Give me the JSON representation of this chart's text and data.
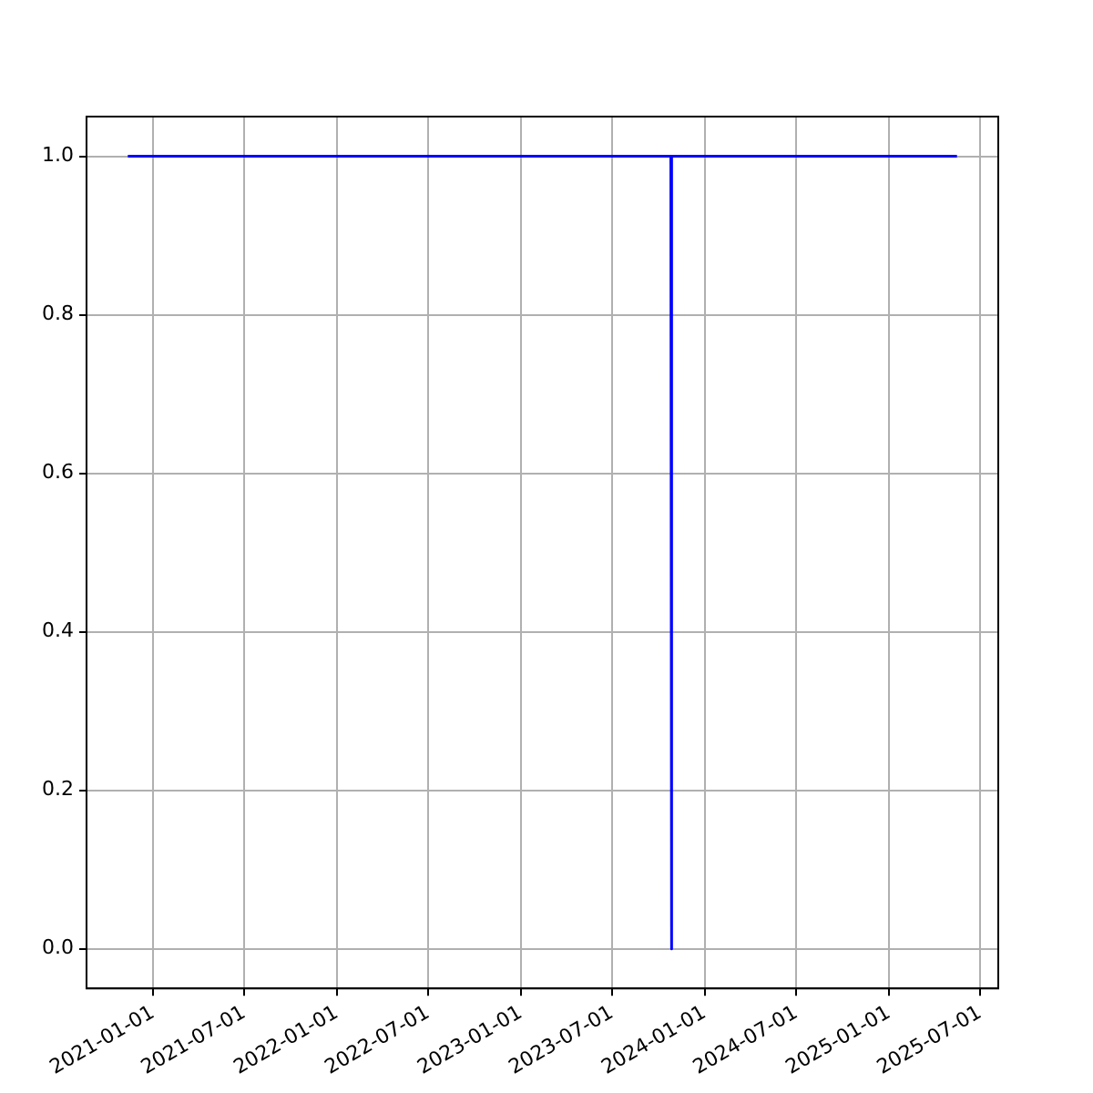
{
  "chart_data": {
    "type": "line",
    "x": [
      "2020-11-12",
      "2023-10-26",
      "2023-10-27",
      "2023-10-28",
      "2025-05-16"
    ],
    "series": [
      {
        "color": "#0000ff",
        "values": [
          1,
          1,
          0,
          1,
          1
        ]
      }
    ],
    "xlim": [
      "2020-08-22",
      "2025-08-06"
    ],
    "xticks": [
      "2021-01-01",
      "2021-07-01",
      "2022-01-01",
      "2022-07-01",
      "2023-01-01",
      "2023-07-01",
      "2024-01-01",
      "2024-07-01",
      "2025-01-01",
      "2025-07-01"
    ],
    "ylim": [
      -0.05,
      1.05
    ],
    "yticks": [
      {
        "value": 0,
        "label": "0.0"
      },
      {
        "value": 0.2,
        "label": "0.2"
      },
      {
        "value": 0.4,
        "label": "0.4"
      },
      {
        "value": 0.6,
        "label": "0.6"
      },
      {
        "value": 0.8,
        "label": "0.8"
      },
      {
        "value": 1,
        "label": "1.0"
      }
    ],
    "grid": true,
    "legend": false,
    "marker": "none",
    "line_style": "solid"
  }
}
